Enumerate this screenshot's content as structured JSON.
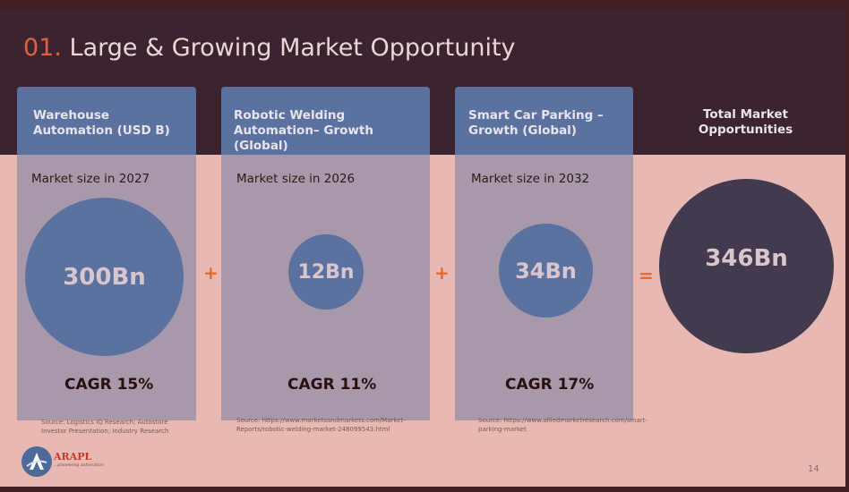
{
  "slide": {
    "title_number": "01.",
    "title_text": " Large & Growing Market Opportunity",
    "page_number": "14"
  },
  "columns": [
    {
      "header": "Warehouse Automation (USD B)",
      "market_size_label": "Market size in 2027",
      "value": "300Bn",
      "cagr": "CAGR 15%",
      "source": "Source: Logistics IQ Research; Autostore Investor Presentation; Industry Research"
    },
    {
      "header": "Robotic Welding Automation– Growth (Global)",
      "market_size_label": "Market size in 2026",
      "value": "12Bn",
      "cagr": "CAGR 11%",
      "source": "Source: https://www.marketsandmarkets.com/Market-Reports/robotic-welding-market-248099543.html"
    },
    {
      "header": "Smart Car Parking –Growth (Global)",
      "market_size_label": "Market size in 2032",
      "value": "34Bn",
      "cagr": "CAGR 17%",
      "source": "Source: https://www.alliedmarketresearch.com/smart-parking-market"
    }
  ],
  "total": {
    "header": "Total Market Opportunities",
    "value": "346Bn"
  },
  "operators": {
    "plus": "+",
    "equals": "="
  },
  "logo": {
    "name": "ARAPL",
    "tagline": "...pioneering automation"
  },
  "colors": {
    "accent_orange": "#e2613a",
    "panel_blue": "#5b71a0",
    "dark_band": "#3c2330",
    "total_circle": "#433a4f",
    "background_pink": "#e8b8b2"
  }
}
